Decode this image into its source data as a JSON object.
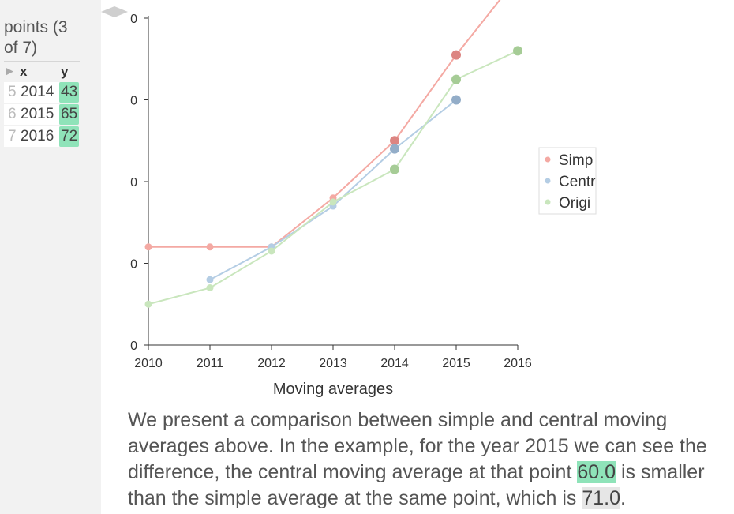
{
  "panel": {
    "title": "points (3 of 7)",
    "columns": {
      "x": "x",
      "y": "y"
    },
    "rows": [
      {
        "index": "5",
        "x": "2014",
        "y": "43"
      },
      {
        "index": "6",
        "x": "2015",
        "y": "65"
      },
      {
        "index": "7",
        "x": "2016",
        "y": "72"
      }
    ]
  },
  "chart_data": {
    "type": "line",
    "xlabel": "Moving averages",
    "x": [
      2010,
      2011,
      2012,
      2013,
      2014,
      2015,
      2016
    ],
    "y_tick_labels": [
      "0",
      "0",
      "0",
      "0",
      "0"
    ],
    "ylim": [
      0,
      80
    ],
    "grid": false,
    "legend_position": "right",
    "series": [
      {
        "name": "Simp",
        "color": "#f4a9a3",
        "marker_color": "#dc8582",
        "values": [
          24,
          24,
          24,
          36,
          50,
          71,
          90
        ]
      },
      {
        "name": "Centr",
        "color": "#b4cde4",
        "marker_color": "#93adc8",
        "values": [
          null,
          16,
          24,
          34,
          48,
          60,
          null
        ]
      },
      {
        "name": "Origi",
        "color": "#c9e6bd",
        "marker_color": "#a6cc96",
        "values": [
          10,
          14,
          23,
          35,
          43,
          65,
          72
        ]
      }
    ]
  },
  "caption": {
    "part1": "We present a comparison between simple and central moving averages above. In the example, for the year 2015 we can see the difference, the central moving average at that point ",
    "value1": "60.0",
    "part2": " is smaller than the simple average at the same point, which is ",
    "value2": "71.0",
    "part3": "."
  }
}
